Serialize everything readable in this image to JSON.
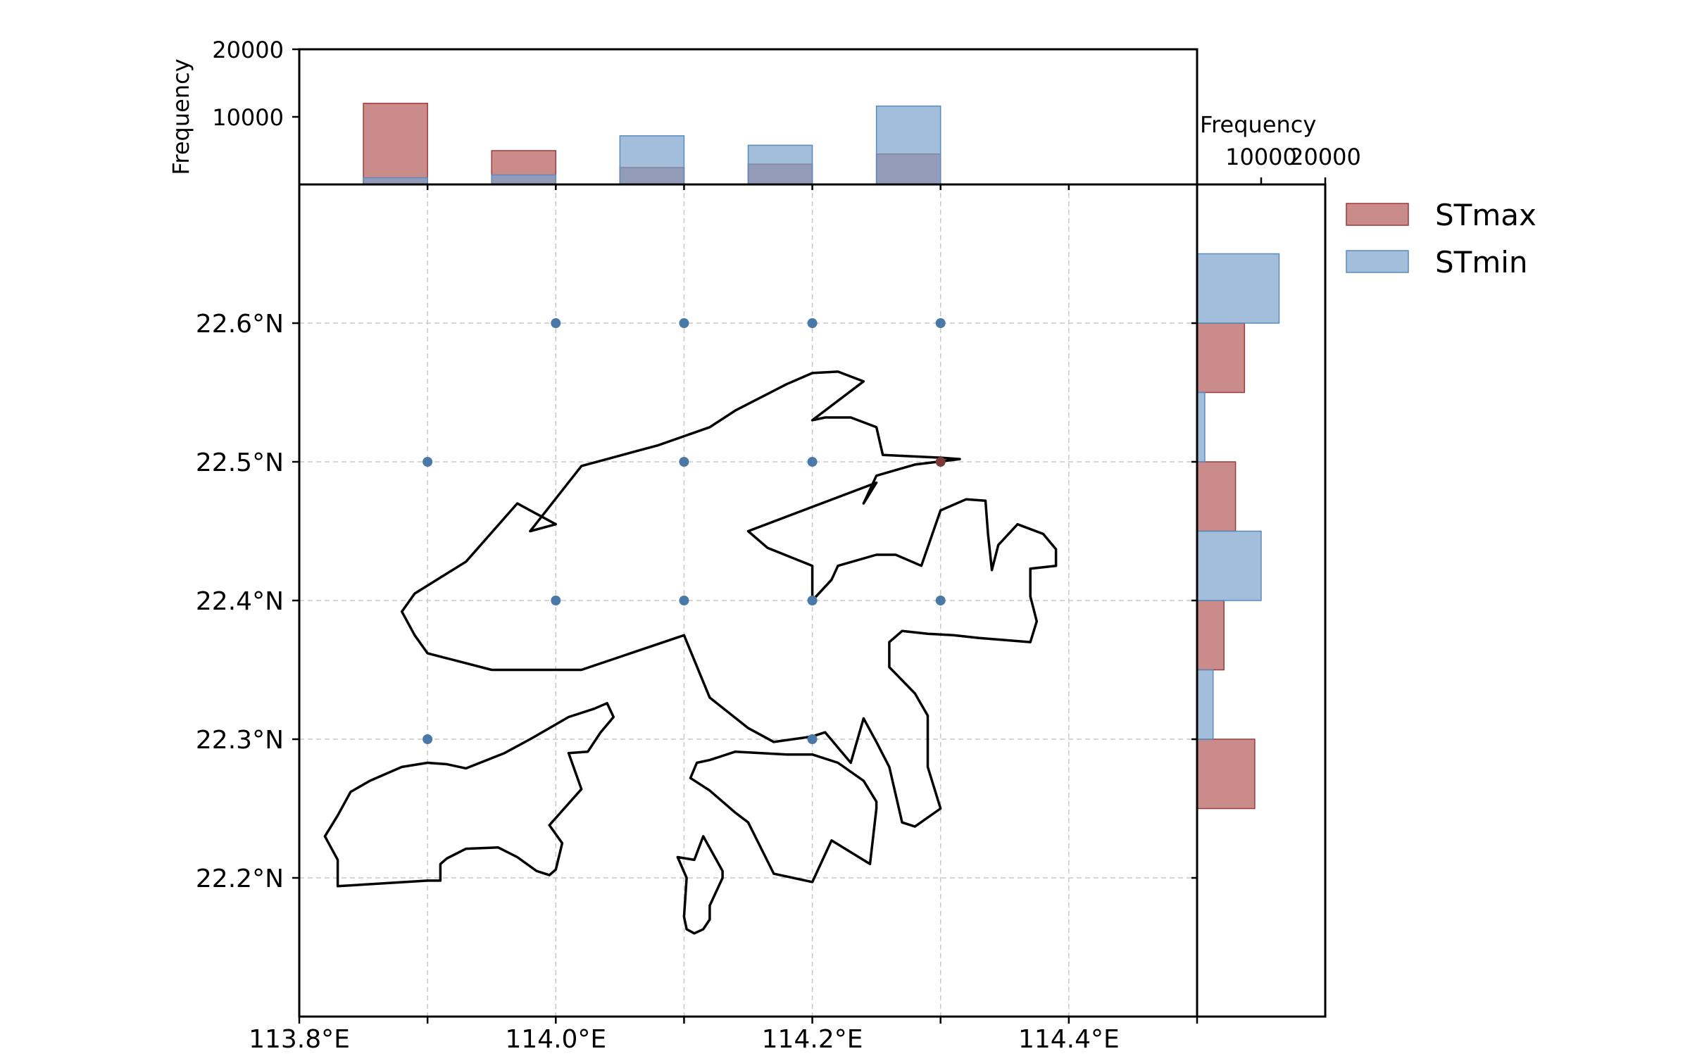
{
  "colors": {
    "stmax_fill": "#b35a5a",
    "stmax_edge": "#9e3a3a",
    "stmin_fill": "#7aa3cc",
    "stmin_edge": "#5a8bbd",
    "point": "#4a79a8",
    "point_max": "#7a3a3a",
    "grid": "#c8c8c8",
    "coast": "#000000"
  },
  "chart_data": {
    "type": "scatter",
    "main": {
      "xlim": [
        113.8,
        114.5
      ],
      "ylim": [
        22.1,
        22.7
      ],
      "xticks": [
        113.8,
        113.9,
        114.0,
        114.1,
        114.2,
        114.3,
        114.4
      ],
      "xtick_labels": [
        "113.8°E",
        "",
        "114.0°E",
        "",
        "114.2°E",
        "",
        "114.4°E"
      ],
      "yticks": [
        22.2,
        22.3,
        22.4,
        22.5,
        22.6
      ],
      "ytick_labels": [
        "22.2°N",
        "22.3°N",
        "22.4°N",
        "22.5°N",
        "22.6°N"
      ],
      "grid": true,
      "points": [
        {
          "x": 114.0,
          "y": 22.6
        },
        {
          "x": 114.1,
          "y": 22.6
        },
        {
          "x": 114.2,
          "y": 22.6
        },
        {
          "x": 114.3,
          "y": 22.6
        },
        {
          "x": 113.9,
          "y": 22.5
        },
        {
          "x": 114.1,
          "y": 22.5
        },
        {
          "x": 114.2,
          "y": 22.5
        },
        {
          "x": 114.0,
          "y": 22.4
        },
        {
          "x": 114.1,
          "y": 22.4
        },
        {
          "x": 114.2,
          "y": 22.4
        },
        {
          "x": 114.3,
          "y": 22.4
        },
        {
          "x": 113.9,
          "y": 22.3
        },
        {
          "x": 114.2,
          "y": 22.3
        }
      ],
      "points_stmax": [
        {
          "x": 114.3,
          "y": 22.5
        }
      ],
      "coastline": [
        [
          [
            113.98,
            22.45
          ],
          [
            114.02,
            22.497
          ],
          [
            114.06,
            22.507
          ],
          [
            114.08,
            22.512
          ],
          [
            114.12,
            22.525
          ],
          [
            114.14,
            22.537
          ],
          [
            114.18,
            22.556
          ],
          [
            114.2,
            22.564
          ],
          [
            114.22,
            22.565
          ],
          [
            114.24,
            22.558
          ],
          [
            114.2,
            22.53
          ],
          [
            114.21,
            22.532
          ],
          [
            114.23,
            22.532
          ],
          [
            114.25,
            22.525
          ],
          [
            114.255,
            22.505
          ],
          [
            114.3,
            22.503
          ],
          [
            114.315,
            22.502
          ],
          [
            114.28,
            22.498
          ],
          [
            114.25,
            22.49
          ],
          [
            114.24,
            22.47
          ],
          [
            114.25,
            22.485
          ],
          [
            114.15,
            22.45
          ],
          [
            114.165,
            22.438
          ],
          [
            114.2,
            22.425
          ],
          [
            114.2,
            22.4
          ],
          [
            114.215,
            22.415
          ],
          [
            114.22,
            22.425
          ],
          [
            114.25,
            22.433
          ],
          [
            114.265,
            22.433
          ],
          [
            114.285,
            22.425
          ],
          [
            114.3,
            22.465
          ],
          [
            114.32,
            22.473
          ],
          [
            114.335,
            22.472
          ],
          [
            114.337,
            22.448
          ],
          [
            114.34,
            22.422
          ],
          [
            114.345,
            22.44
          ],
          [
            114.36,
            22.455
          ],
          [
            114.38,
            22.448
          ],
          [
            114.39,
            22.437
          ],
          [
            114.39,
            22.425
          ],
          [
            114.37,
            22.423
          ],
          [
            114.37,
            22.403
          ],
          [
            114.375,
            22.385
          ],
          [
            114.37,
            22.37
          ],
          [
            114.33,
            22.373
          ],
          [
            114.31,
            22.375
          ],
          [
            114.29,
            22.376
          ],
          [
            114.27,
            22.378
          ],
          [
            114.26,
            22.37
          ],
          [
            114.26,
            22.352
          ],
          [
            114.28,
            22.333
          ],
          [
            114.29,
            22.317
          ],
          [
            114.29,
            22.28
          ],
          [
            114.3,
            22.25
          ],
          [
            114.28,
            22.237
          ],
          [
            114.27,
            22.24
          ],
          [
            114.26,
            22.28
          ],
          [
            114.25,
            22.298
          ],
          [
            114.24,
            22.315
          ],
          [
            114.23,
            22.283
          ],
          [
            114.21,
            22.305
          ],
          [
            114.2,
            22.302
          ],
          [
            114.17,
            22.298
          ],
          [
            114.15,
            22.308
          ],
          [
            114.12,
            22.33
          ],
          [
            114.1,
            22.375
          ],
          [
            114.02,
            22.35
          ],
          [
            113.99,
            22.35
          ],
          [
            113.95,
            22.35
          ],
          [
            113.9,
            22.362
          ],
          [
            113.89,
            22.375
          ],
          [
            113.88,
            22.392
          ],
          [
            113.89,
            22.405
          ],
          [
            113.93,
            22.428
          ],
          [
            113.97,
            22.47
          ],
          [
            114.0,
            22.455
          ]
        ],
        [
          [
            113.83,
            22.194
          ],
          [
            113.9,
            22.198
          ],
          [
            113.91,
            22.198
          ],
          [
            113.91,
            22.21
          ],
          [
            113.915,
            22.214
          ],
          [
            113.93,
            22.221
          ],
          [
            113.955,
            22.222
          ],
          [
            113.97,
            22.215
          ],
          [
            113.985,
            22.205
          ],
          [
            113.995,
            22.202
          ],
          [
            114.0,
            22.206
          ],
          [
            114.005,
            22.225
          ],
          [
            113.995,
            22.238
          ],
          [
            114.02,
            22.264
          ],
          [
            114.01,
            22.29
          ],
          [
            114.025,
            22.291
          ],
          [
            114.035,
            22.305
          ],
          [
            114.045,
            22.316
          ],
          [
            114.04,
            22.326
          ],
          [
            114.03,
            22.322
          ],
          [
            114.01,
            22.316
          ],
          [
            113.98,
            22.3
          ],
          [
            113.96,
            22.29
          ],
          [
            113.93,
            22.279
          ],
          [
            113.915,
            22.282
          ],
          [
            113.9,
            22.283
          ],
          [
            113.88,
            22.28
          ],
          [
            113.855,
            22.27
          ],
          [
            113.84,
            22.262
          ],
          [
            113.83,
            22.245
          ],
          [
            113.82,
            22.23
          ],
          [
            113.83,
            22.213
          ]
        ],
        [
          [
            114.11,
            22.283
          ],
          [
            114.12,
            22.285
          ],
          [
            114.14,
            22.291
          ],
          [
            114.16,
            22.29
          ],
          [
            114.18,
            22.289
          ],
          [
            114.2,
            22.289
          ],
          [
            114.22,
            22.283
          ],
          [
            114.24,
            22.27
          ],
          [
            114.25,
            22.255
          ],
          [
            114.25,
            22.25
          ],
          [
            114.245,
            22.21
          ],
          [
            114.215,
            22.227
          ],
          [
            114.2,
            22.197
          ],
          [
            114.17,
            22.203
          ],
          [
            114.15,
            22.24
          ],
          [
            114.14,
            22.247
          ],
          [
            114.12,
            22.263
          ],
          [
            114.105,
            22.272
          ]
        ],
        [
          [
            114.108,
            22.213
          ],
          [
            114.115,
            22.23
          ],
          [
            114.13,
            22.205
          ],
          [
            114.13,
            22.2
          ],
          [
            114.12,
            22.18
          ],
          [
            114.12,
            22.17
          ],
          [
            114.115,
            22.163
          ],
          [
            114.108,
            22.16
          ],
          [
            114.102,
            22.163
          ],
          [
            114.1,
            22.172
          ],
          [
            114.102,
            22.2
          ],
          [
            114.095,
            22.215
          ]
        ]
      ]
    },
    "top_hist": {
      "ylabel": "Frequency",
      "yticks": [
        10000,
        20000
      ],
      "ytick_labels": [
        "10000",
        "20000"
      ],
      "ylim": [
        0,
        20000
      ],
      "bins": [
        113.85,
        113.95,
        114.05,
        114.15,
        114.25
      ],
      "bin_width": 0.05,
      "series": [
        {
          "name": "STmax",
          "values": [
            12000,
            5000,
            2500,
            3000,
            4500
          ]
        },
        {
          "name": "STmin",
          "values": [
            1000,
            1400,
            7200,
            5800,
            11600
          ]
        }
      ]
    },
    "right_hist": {
      "xlabel": "Frequency",
      "xticks": [
        10000,
        20000
      ],
      "xtick_labels": [
        "10000",
        "20000"
      ],
      "xlim": [
        0,
        20000
      ],
      "bins": [
        22.25,
        22.3,
        22.35,
        22.4,
        22.45,
        22.5,
        22.55,
        22.6,
        22.65
      ],
      "bin_height": 0.05,
      "series": [
        {
          "name": "STmax",
          "values": [
            9000,
            0,
            4200,
            0,
            6000,
            0,
            7400,
            0
          ]
        },
        {
          "name": "STmin",
          "values": [
            0,
            2500,
            0,
            10000,
            0,
            1200,
            0,
            12800
          ]
        }
      ]
    },
    "legend": {
      "placement": "top-right",
      "entries": [
        "STmax",
        "STmin"
      ]
    }
  }
}
